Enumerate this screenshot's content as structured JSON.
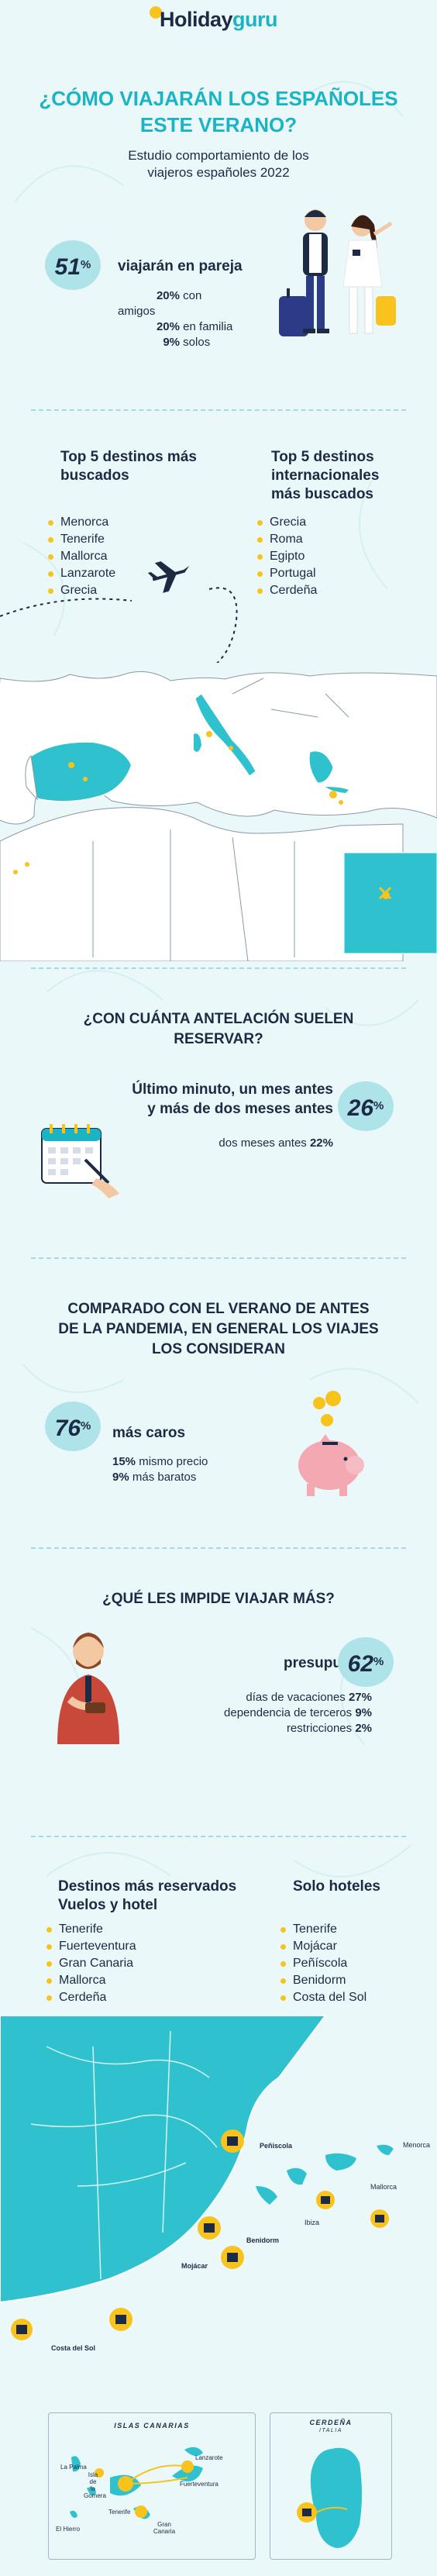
{
  "colors": {
    "accent": "#1ab4c4",
    "yellow": "#f7c31c",
    "navy": "#1d2a44",
    "light": "#aee3ea",
    "sea": "#eaf8f9"
  },
  "logo": {
    "part1": "Holiday",
    "part2": "guru"
  },
  "header": {
    "title_line1": "¿Cómo viajarán los españoles",
    "title_line2": "este verano?",
    "subtitle_line1": "Estudio comportamiento de los",
    "subtitle_line2": "viajeros españoles 2022"
  },
  "section_pareja": {
    "percent": "51",
    "percent_sign": "%",
    "lead": "viajarán en pareja",
    "lines": [
      {
        "value": "20%",
        "text": "con amigos"
      },
      {
        "value": "20%",
        "text": "en familia"
      },
      {
        "value": "9%",
        "text": "solos"
      }
    ]
  },
  "section_destinos": {
    "national_title_1": "Top 5 destinos más",
    "national_title_2": "buscados",
    "national": [
      "Menorca",
      "Tenerife",
      "Mallorca",
      "Lanzarote",
      "Grecia"
    ],
    "international_title_1": "Top 5 destinos",
    "international_title_2": "internacionales",
    "international_title_3": "más buscados",
    "international": [
      "Grecia",
      "Roma",
      "Egipto",
      "Portugal",
      "Cerdeña"
    ]
  },
  "section_antelacion": {
    "title_1": "¿Con cuánta antelación suelen",
    "title_2": "reservar?",
    "lead_1": "Último minuto, un mes antes",
    "lead_2": "y más de dos meses antes",
    "percent": "26",
    "percent_sign": "%",
    "detail_text": "dos meses antes",
    "detail_value": "22%"
  },
  "section_pandemia": {
    "title_1": "Comparado con el verano de antes",
    "title_2": "de la pandemia, en general los viajes",
    "title_3": "los consideran",
    "percent": "76",
    "percent_sign": "%",
    "lead": "más caros",
    "lines": [
      {
        "value": "15%",
        "text": "mismo precio"
      },
      {
        "value": "9%",
        "text": "más baratos"
      }
    ]
  },
  "section_impide": {
    "title": "¿Qué les impide viajar más?",
    "lead": "presupuesto",
    "percent": "62",
    "percent_sign": "%",
    "lines": [
      {
        "text": "días de vacaciones",
        "value": "27%"
      },
      {
        "text": "dependencia de terceros",
        "value": "9%"
      },
      {
        "text": "restricciones",
        "value": "2%"
      }
    ]
  },
  "section_reservados": {
    "left_title_1": "Destinos más reservados",
    "left_title_2": "Vuelos y hotel",
    "left": [
      "Tenerife",
      "Fuerteventura",
      "Gran Canaria",
      "Mallorca",
      "Cerdeña"
    ],
    "right_title": "Solo hoteles",
    "right": [
      "Tenerife",
      "Mojácar",
      "Peñíscola",
      "Benidorm",
      "Costa del Sol"
    ]
  },
  "spain_map": {
    "labels": {
      "peniscola": "Peñiscola",
      "menorca": "Menorca",
      "mallorca": "Mallorca",
      "ibiza": "Ibiza",
      "benidorm": "Benidorm",
      "mojacar": "Mojácar",
      "costa": "Costa del Sol"
    }
  },
  "canarias": {
    "title": "ISLAS CANARIAS",
    "labels": {
      "lapalma": "La Palma",
      "gomera_1": "Isla",
      "gomera_2": "de",
      "gomera_3": "la",
      "gomera_4": "Gomera",
      "tenerife": "Tenerife",
      "elhierro": "El Hierro",
      "grancanaria_1": "Gran",
      "grancanaria_2": "Canaria",
      "lanzarote": "Lanzarote",
      "fuerteventura": "Fuerteventura"
    }
  },
  "cerdena": {
    "title": "CERDEÑA",
    "subtitle": "ITALIA"
  }
}
